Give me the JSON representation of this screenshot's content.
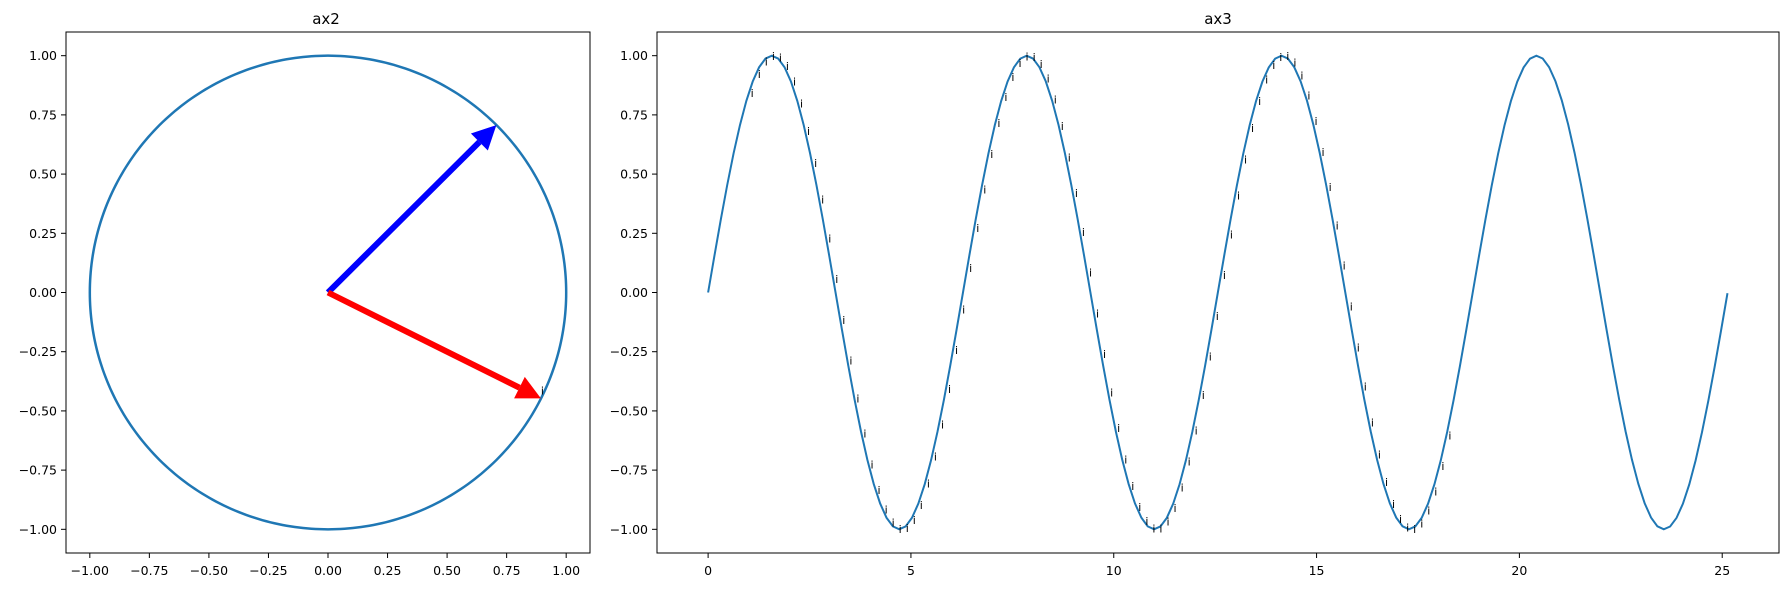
{
  "chart_data": [
    {
      "type": "line",
      "title": "ax2",
      "xlim": [
        -1.1,
        1.1
      ],
      "ylim": [
        -1.1,
        1.1
      ],
      "x_ticks": [
        -1.0,
        -0.75,
        -0.5,
        -0.25,
        0.0,
        0.25,
        0.5,
        0.75,
        1.0
      ],
      "x_tick_labels": [
        "−1.00",
        "−0.75",
        "−0.50",
        "−0.25",
        "0.00",
        "0.25",
        "0.50",
        "0.75",
        "1.00"
      ],
      "y_ticks": [
        1.0,
        0.75,
        0.5,
        0.25,
        0.0,
        -0.25,
        -0.5,
        -0.75,
        -1.0
      ],
      "y_tick_labels": [
        "1.00",
        "0.75",
        "0.50",
        "0.25",
        "0.00",
        "−0.25",
        "−0.50",
        "−0.75",
        "−1.00"
      ],
      "circle": {
        "center": [
          0,
          0
        ],
        "radius": 1.0,
        "color": "#1f77b4"
      },
      "arrows": [
        {
          "from": [
            0,
            0
          ],
          "to": [
            0.707,
            0.707
          ],
          "color": "#0000ff"
        },
        {
          "from": [
            0,
            0
          ],
          "to": [
            0.894,
            -0.447
          ],
          "color": "#ff0000"
        }
      ],
      "annotations": [
        {
          "text": "i",
          "x": 0.9,
          "y": -0.43
        }
      ],
      "grid": false
    },
    {
      "type": "line",
      "title": "ax3",
      "xlim": [
        -1.26,
        26.4
      ],
      "ylim": [
        -1.1,
        1.1
      ],
      "x_ticks": [
        0,
        5,
        10,
        15,
        20,
        25
      ],
      "x_tick_labels": [
        "0",
        "5",
        "10",
        "15",
        "20",
        "25"
      ],
      "y_ticks": [
        1.0,
        0.75,
        0.5,
        0.25,
        0.0,
        -0.25,
        -0.5,
        -0.75,
        -1.0
      ],
      "y_tick_labels": [
        "1.00",
        "0.75",
        "0.50",
        "0.25",
        "0.00",
        "−0.25",
        "−0.50",
        "−0.75",
        "−1.00"
      ],
      "series": [
        {
          "function": "sin",
          "x_start": 0,
          "x_end": 25.13,
          "color": "#1f77b4"
        }
      ],
      "point_labels": {
        "text": "i",
        "x_start": 1.0,
        "x_end": 18.2,
        "count": 100
      },
      "grid": false
    }
  ]
}
